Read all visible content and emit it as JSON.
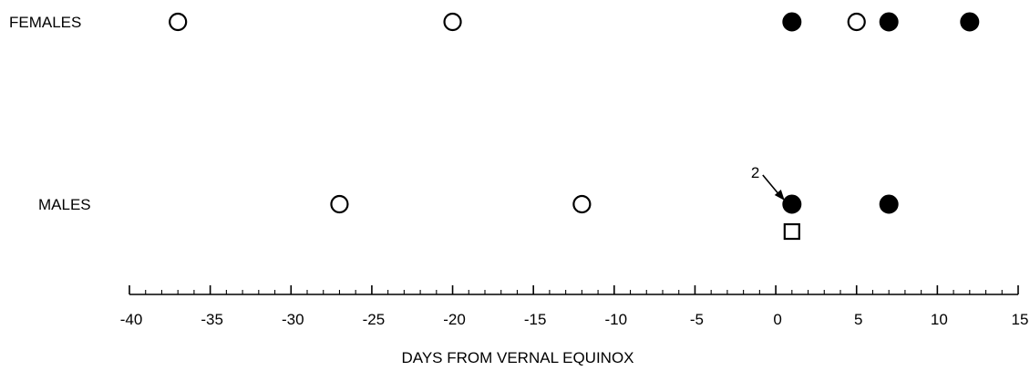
{
  "chart_data": {
    "type": "scatter",
    "xlabel": "DAYS FROM VERNAL EQUINOX",
    "ylabel": "",
    "title": "",
    "xlim": [
      -40,
      15
    ],
    "x_ticks": [
      -40,
      -35,
      -30,
      -25,
      -20,
      -15,
      -10,
      -5,
      0,
      5,
      10,
      15
    ],
    "minor_tick_step": 1,
    "grid": false,
    "categories": [
      "FEMALES",
      "MALES"
    ],
    "series": [
      {
        "marker": "open-circle",
        "points": [
          {
            "row": "FEMALES",
            "x": -37
          },
          {
            "row": "FEMALES",
            "x": -20
          },
          {
            "row": "FEMALES",
            "x": 5
          },
          {
            "row": "MALES",
            "x": -27
          },
          {
            "row": "MALES",
            "x": -12
          }
        ]
      },
      {
        "marker": "filled-circle",
        "points": [
          {
            "row": "FEMALES",
            "x": 1
          },
          {
            "row": "FEMALES",
            "x": 7
          },
          {
            "row": "FEMALES",
            "x": 12
          },
          {
            "row": "MALES",
            "x": 1
          },
          {
            "row": "MALES",
            "x": 7
          }
        ]
      },
      {
        "marker": "open-square",
        "points": [
          {
            "row": "MALES",
            "x": 1
          }
        ]
      }
    ],
    "annotations": [
      {
        "text": "2",
        "row": "MALES",
        "x": 1
      }
    ]
  }
}
